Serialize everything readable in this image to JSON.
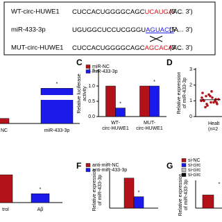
{
  "sequence_box": {
    "rows": [
      {
        "label": "WT-circ-HUWE1",
        "seq": [
          "CUCCACUGGGGCAGC",
          "UCAUGA",
          "AC"
        ],
        "end": "(5' ... 3')"
      },
      {
        "label": "miR-433-3p",
        "seq": [
          "UGUGGCUCCUCGGGU",
          "AGUACU",
          "A"
        ],
        "end": "(5' ... 3')"
      },
      {
        "label": "MUT-circ-HUWE1",
        "seq": [
          "CUCCACUGGGGCAGC",
          "AGCACA",
          "AC"
        ],
        "end": "(5' ... 3')"
      }
    ]
  },
  "chart_data": [
    {
      "type": "bar",
      "categories": [
        "NC",
        "miR-433-3p"
      ],
      "values": [
        1,
        7
      ],
      "colors": [
        "#b3121b",
        "#1a1aeb"
      ],
      "ylim": [
        0,
        8
      ],
      "significance": "*"
    },
    {
      "type": "grouped-bar",
      "letter": "C",
      "y_label": [
        "Relative luciferase",
        "activity"
      ],
      "categories": [
        [
          "WT-",
          "circ-HUWE1"
        ],
        [
          "MUT-",
          "circ-HUWE1"
        ]
      ],
      "series": [
        {
          "name": "miR-NC",
          "color": "#b3121b",
          "values": [
            1.0,
            1.0
          ]
        },
        {
          "name": "miR-433-3p",
          "color": "#1a1aeb",
          "values": [
            0.28,
            1.0
          ]
        }
      ],
      "ylim": [
        0,
        1.5
      ],
      "yticks": [
        {
          "value": 0,
          "label": "0.0"
        },
        0.5,
        {
          "value": 1,
          "label": "1.0"
        },
        1.5
      ],
      "significance": "*"
    },
    {
      "type": "scatter",
      "letter": "D",
      "y_label": [
        "Relative expression",
        "of miR-433-3p"
      ],
      "x_label": [
        "Healt",
        "(n=2"
      ],
      "values": [
        1.0,
        1.3,
        0.9,
        1.1,
        1.5,
        0.7,
        1.2,
        0.8,
        1.0,
        1.4,
        0.9,
        1.1,
        0.6,
        1.3,
        1.0,
        1.2,
        0.8,
        1.6,
        0.9,
        1.05
      ],
      "color": "#b3121b",
      "ylim": [
        0,
        3
      ],
      "yticks": [
        0,
        1,
        2,
        3
      ]
    },
    {
      "type": "bar",
      "categories": [
        "trol",
        "Aβ"
      ],
      "values": [
        1.0,
        0.32
      ],
      "colors": [
        "#b3121b",
        "#1a1aeb"
      ],
      "ylim": [
        0,
        1.2
      ],
      "significance": "*"
    },
    {
      "type": "grouped-bar",
      "letter": "F",
      "y_label": [
        "Relative expression",
        "of miR-433-3p"
      ],
      "categories": [
        ""
      ],
      "series": [
        {
          "name": "anti-miR-NC",
          "color": "#b3121b",
          "values": [
            1.0
          ]
        },
        {
          "name": "anti-miR-433-3p",
          "color": "#1a1aeb",
          "values": [
            0.38
          ]
        }
      ],
      "ylim": [
        0,
        1.2
      ],
      "significance": "*"
    },
    {
      "type": "grouped-bar",
      "letter": "G",
      "y_label": [
        "Relative expression",
        "of miR-433-3p"
      ],
      "categories": [
        ""
      ],
      "series": [
        {
          "name": "si-NC",
          "color": "#b3121b",
          "values": [
            1.0
          ]
        },
        {
          "name": "si-circ",
          "color": "#1a1aeb",
          "values": [
            null
          ]
        },
        {
          "name": "si-circ",
          "color": "#bbbbbb",
          "values": [
            null
          ]
        },
        {
          "name": "si-circ",
          "color": "#111111",
          "values": [
            null
          ]
        }
      ],
      "ylim": [
        0,
        2
      ],
      "significance": "*"
    }
  ]
}
